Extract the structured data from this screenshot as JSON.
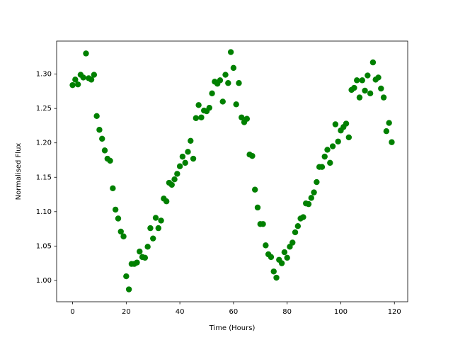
{
  "chart_data": {
    "type": "scatter",
    "xlabel": "Time (Hours)",
    "ylabel": "Normalised Flux",
    "color": "#008000",
    "x": [
      0,
      1,
      2,
      3,
      4,
      5,
      6,
      7,
      8,
      9,
      10,
      11,
      12,
      13,
      14,
      15,
      16,
      17,
      18,
      19,
      20,
      21,
      22,
      23,
      24,
      25,
      26,
      27,
      28,
      29,
      30,
      31,
      32,
      33,
      34,
      35,
      36,
      37,
      38,
      39,
      40,
      41,
      42,
      43,
      44,
      45,
      46,
      47,
      48,
      49,
      50,
      51,
      52,
      53,
      54,
      55,
      56,
      57,
      58,
      59,
      60,
      61,
      62,
      63,
      64,
      65,
      66,
      67,
      68,
      69,
      70,
      71,
      72,
      73,
      74,
      75,
      76,
      77,
      78,
      79,
      80,
      81,
      82,
      83,
      84,
      85,
      86,
      87,
      88,
      89,
      90,
      91,
      92,
      93,
      94,
      95,
      96,
      97,
      98,
      99,
      100,
      101,
      102,
      103,
      104,
      105,
      106,
      107,
      108,
      109,
      110,
      111,
      112,
      113,
      114,
      115,
      116,
      117,
      118,
      119
    ],
    "values": [
      1.284,
      1.292,
      1.285,
      1.299,
      1.295,
      1.33,
      1.294,
      1.292,
      1.299,
      1.239,
      1.219,
      1.206,
      1.189,
      1.177,
      1.174,
      1.134,
      1.103,
      1.09,
      1.071,
      1.064,
      1.006,
      0.987,
      1.024,
      1.024,
      1.026,
      1.042,
      1.034,
      1.033,
      1.049,
      1.076,
      1.061,
      1.091,
      1.076,
      1.087,
      1.119,
      1.115,
      1.142,
      1.139,
      1.147,
      1.155,
      1.166,
      1.18,
      1.171,
      1.187,
      1.203,
      1.177,
      1.236,
      1.255,
      1.237,
      1.247,
      1.246,
      1.251,
      1.272,
      1.289,
      1.286,
      1.291,
      1.26,
      1.299,
      1.287,
      1.332,
      1.309,
      1.256,
      1.287,
      1.237,
      1.23,
      1.235,
      1.183,
      1.181,
      1.132,
      1.106,
      1.082,
      1.082,
      1.051,
      1.038,
      1.034,
      1.013,
      1.004,
      1.03,
      1.025,
      1.041,
      1.033,
      1.049,
      1.055,
      1.07,
      1.079,
      1.09,
      1.092,
      1.112,
      1.111,
      1.12,
      1.128,
      1.143,
      1.165,
      1.165,
      1.18,
      1.19,
      1.171,
      1.195,
      1.227,
      1.202,
      1.218,
      1.223,
      1.228,
      1.208,
      1.277,
      1.28,
      1.291,
      1.266,
      1.291,
      1.276,
      1.298,
      1.272,
      1.317,
      1.292,
      1.295,
      1.279,
      1.266,
      1.217,
      1.229,
      1.201
    ],
    "xlim": [
      -5.95,
      124.95
    ],
    "xticks": [
      0,
      20,
      40,
      60,
      80,
      100,
      120
    ],
    "ylim": [
      0.969,
      1.348
    ],
    "yticks": [
      {
        "value": 1.0,
        "label": "1.00"
      },
      {
        "value": 1.05,
        "label": "1.05"
      },
      {
        "value": 1.1,
        "label": "1.10"
      },
      {
        "value": 1.15,
        "label": "1.15"
      },
      {
        "value": 1.2,
        "label": "1.20"
      },
      {
        "value": 1.25,
        "label": "1.25"
      },
      {
        "value": 1.3,
        "label": "1.30"
      }
    ]
  }
}
